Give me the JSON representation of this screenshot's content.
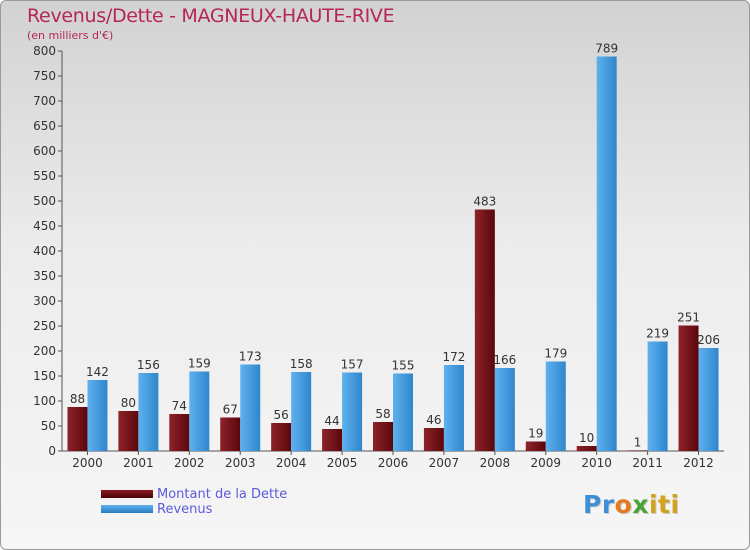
{
  "title": "Revenus/Dette - MAGNEUX-HAUTE-RIVE",
  "subtitle": "(en milliers d'€)",
  "chart_data": {
    "type": "bar",
    "title": "Revenus/Dette - MAGNEUX-HAUTE-RIVE",
    "ylabel": "(en milliers d'€)",
    "xlabel": "",
    "categories": [
      "2000",
      "2001",
      "2002",
      "2003",
      "2004",
      "2005",
      "2006",
      "2007",
      "2008",
      "2009",
      "2010",
      "2011",
      "2012"
    ],
    "series": [
      {
        "name": "Montant de la Dette",
        "color": "#6e0c12",
        "values": [
          88,
          80,
          74,
          67,
          56,
          44,
          58,
          46,
          483,
          19,
          10,
          1,
          251
        ]
      },
      {
        "name": "Revenus",
        "color": "#3d96db",
        "values": [
          142,
          156,
          159,
          173,
          158,
          157,
          155,
          172,
          166,
          179,
          789,
          219,
          206
        ]
      }
    ],
    "ylim": [
      0,
      800
    ],
    "yticks": [
      0,
      50,
      100,
      150,
      200,
      250,
      300,
      350,
      400,
      450,
      500,
      550,
      600,
      650,
      700,
      750,
      800
    ],
    "grid": false,
    "legend_position": "bottom-left"
  },
  "legend": {
    "items": [
      {
        "label": "Montant de la Dette",
        "color": "#6e0c12"
      },
      {
        "label": "Revenus",
        "color": "#3d96db"
      }
    ]
  },
  "logo": {
    "p1": "Pr",
    "p2": "o",
    "p3": "x",
    "p4": "iti"
  }
}
